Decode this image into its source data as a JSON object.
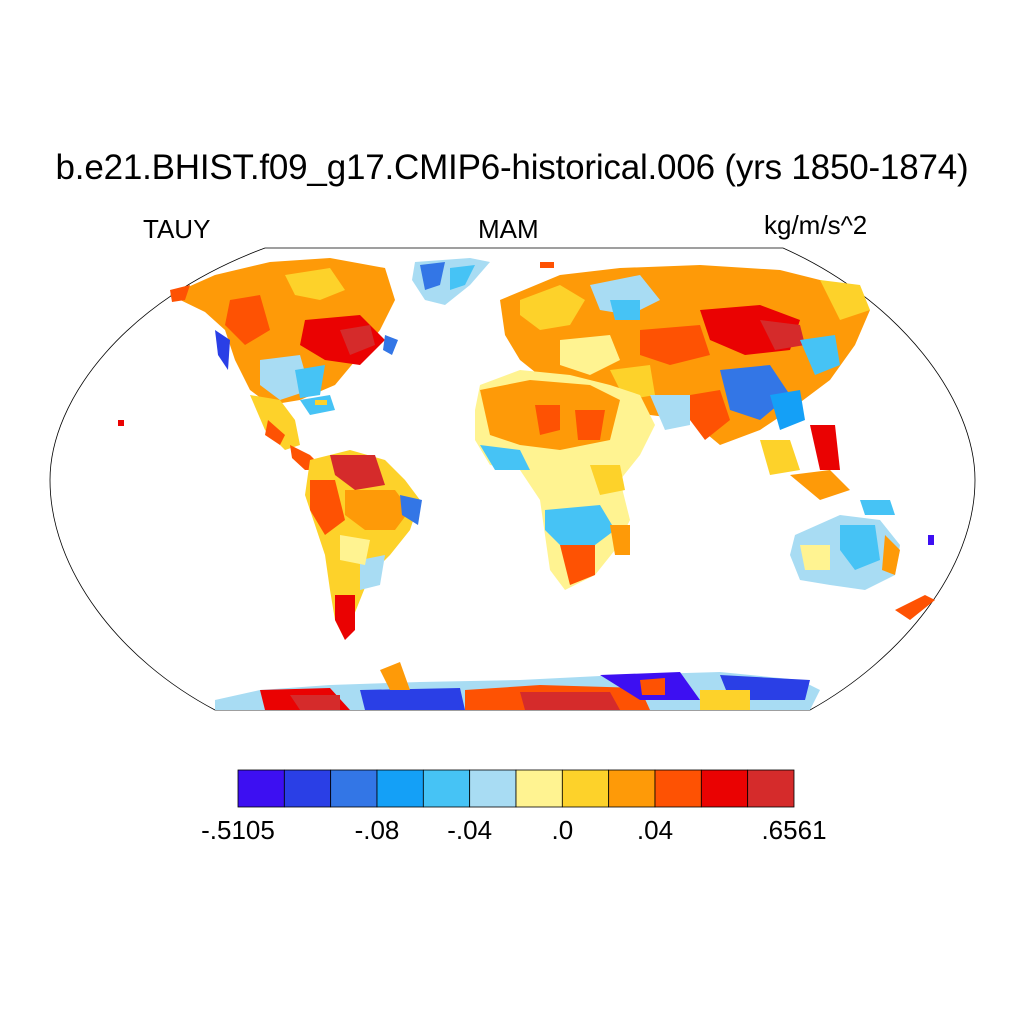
{
  "title": "b.e21.BHIST.f09_g17.CMIP6-historical.006 (yrs 1850-1874)",
  "left_label": "TAUY",
  "center_label": "MAM",
  "right_label": "kg/m/s^2",
  "colorbar": {
    "colors": [
      "#3d0ff2",
      "#2a3fe6",
      "#3376e6",
      "#14a0f7",
      "#46c3f5",
      "#a8dcf3",
      "#fff391",
      "#fdd22a",
      "#fe9a08",
      "#fe5203",
      "#ea0202",
      "#d52b2b"
    ],
    "tick_labels": [
      {
        "text": "-.5105",
        "boundary": 0
      },
      {
        "text": "-.08",
        "boundary": 3
      },
      {
        "text": "-.04",
        "boundary": 5
      },
      {
        "text": ".0",
        "boundary": 7
      },
      {
        "text": ".04",
        "boundary": 9
      },
      {
        "text": ".6561",
        "boundary": 12
      }
    ]
  }
}
